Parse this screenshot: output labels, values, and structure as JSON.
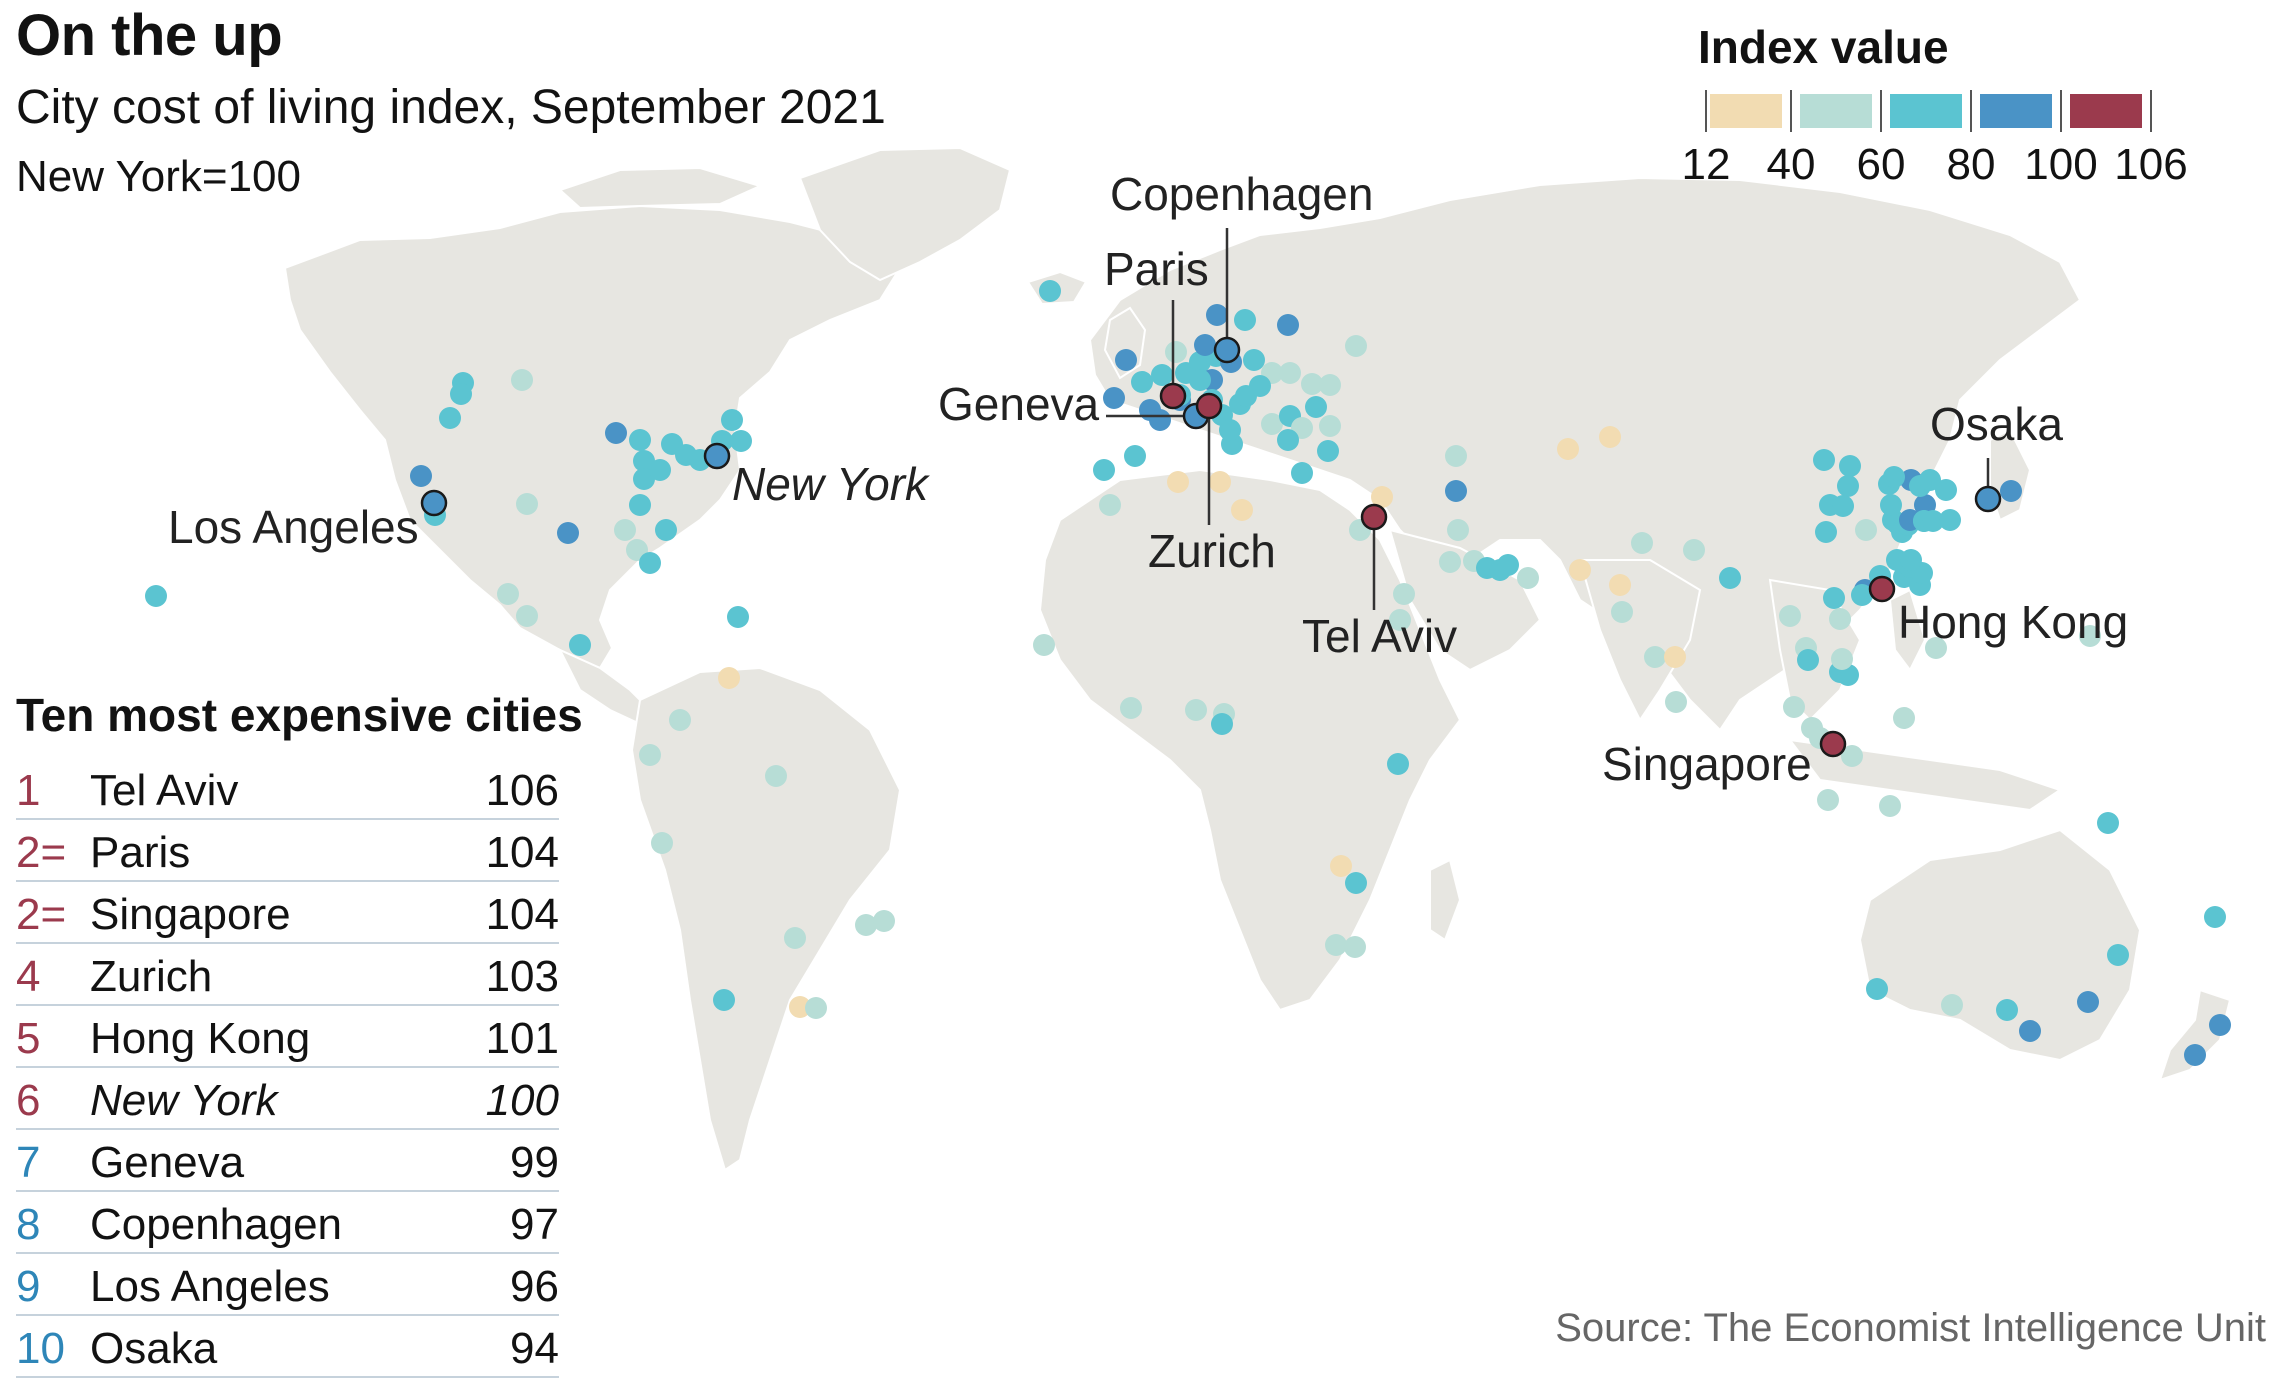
{
  "title": "On the up",
  "subtitle": "City cost of living index, September 2021",
  "unit_note": "New York=100",
  "source": "Source: The Economist Intelligence Unit",
  "legend": {
    "title": "Index value",
    "ticks": [
      "12",
      "40",
      "60",
      "80",
      "100",
      "106"
    ],
    "bins": [
      {
        "from": 12,
        "to": 40,
        "color": "#f2dcb2"
      },
      {
        "from": 40,
        "to": 60,
        "color": "#b7ddd6"
      },
      {
        "from": 60,
        "to": 80,
        "color": "#5bc4d1"
      },
      {
        "from": 80,
        "to": 100,
        "color": "#4a93c6"
      },
      {
        "from": 100,
        "to": 106,
        "color": "#9b3a4d"
      }
    ]
  },
  "table": {
    "title": "Ten most expensive cities",
    "rows": [
      {
        "rank": "1",
        "city": "Tel Aviv",
        "value": "106",
        "color": "#9b3a4d"
      },
      {
        "rank": "2=",
        "city": "Paris",
        "value": "104",
        "color": "#9b3a4d"
      },
      {
        "rank": "2=",
        "city": "Singapore",
        "value": "104",
        "color": "#9b3a4d"
      },
      {
        "rank": "4",
        "city": "Zurich",
        "value": "103",
        "color": "#9b3a4d"
      },
      {
        "rank": "5",
        "city": "Hong Kong",
        "value": "101",
        "color": "#9b3a4d"
      },
      {
        "rank": "6",
        "city": "New York",
        "value": "100",
        "color": "#9b3a4d",
        "italic": true
      },
      {
        "rank": "7",
        "city": "Geneva",
        "value": "99",
        "color": "#2e86b8"
      },
      {
        "rank": "8",
        "city": "Copenhagen",
        "value": "97",
        "color": "#2e86b8"
      },
      {
        "rank": "9",
        "city": "Los Angeles",
        "value": "96",
        "color": "#2e86b8"
      },
      {
        "rank": "10",
        "city": "Osaka",
        "value": "94",
        "color": "#2e86b8"
      }
    ]
  },
  "callouts": [
    {
      "city": "Copenhagen",
      "value": 97
    },
    {
      "city": "Paris",
      "value": 104
    },
    {
      "city": "Geneva",
      "value": 99
    },
    {
      "city": "Zurich",
      "value": 103
    },
    {
      "city": "Tel Aviv",
      "value": 106
    },
    {
      "city": "New York",
      "value": 100,
      "italic": true
    },
    {
      "city": "Los Angeles",
      "value": 96
    },
    {
      "city": "Osaka",
      "value": 94
    },
    {
      "city": "Hong Kong",
      "value": 101
    },
    {
      "city": "Singapore",
      "value": 104
    }
  ]
}
